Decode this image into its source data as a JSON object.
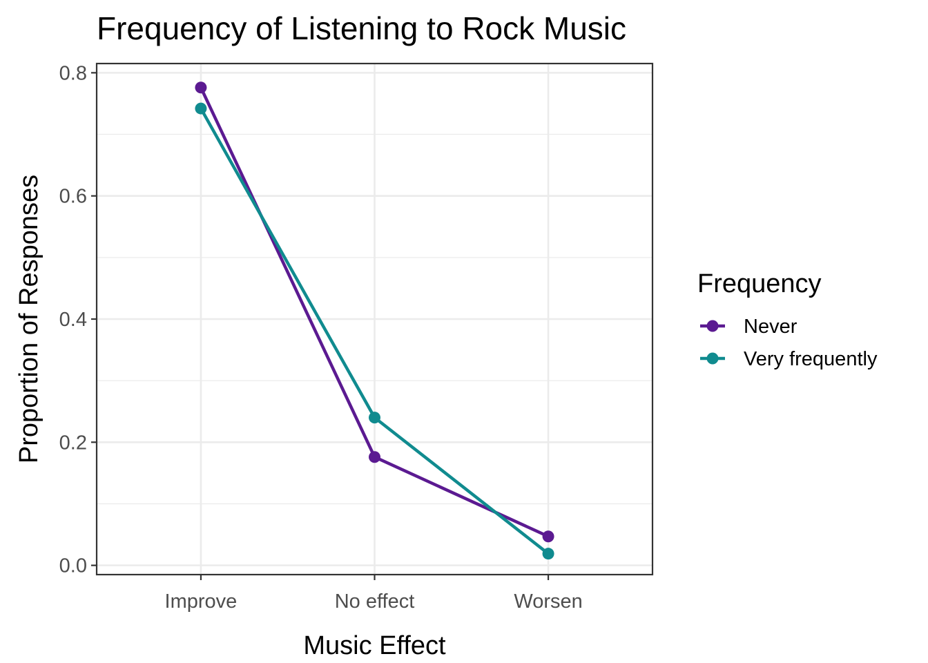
{
  "chart_data": {
    "type": "line",
    "title": "Frequency of Listening to Rock Music",
    "xlabel": "Music Effect",
    "ylabel": "Proportion of Responses",
    "categories": [
      "Improve",
      "No effect",
      "Worsen"
    ],
    "ylim": [
      -0.015,
      0.815
    ],
    "yticks": [
      "0.0",
      "0.2",
      "0.4",
      "0.6",
      "0.8"
    ],
    "ytick_values": [
      0.0,
      0.2,
      0.4,
      0.6,
      0.8
    ],
    "grid": true,
    "legend": {
      "title": "Frequency",
      "position": "right"
    },
    "series": [
      {
        "name": "Never",
        "color": "#5b1a91",
        "values": [
          0.776,
          0.176,
          0.047
        ]
      },
      {
        "name": "Very frequently",
        "color": "#108b8f",
        "values": [
          0.742,
          0.24,
          0.019
        ]
      }
    ]
  }
}
